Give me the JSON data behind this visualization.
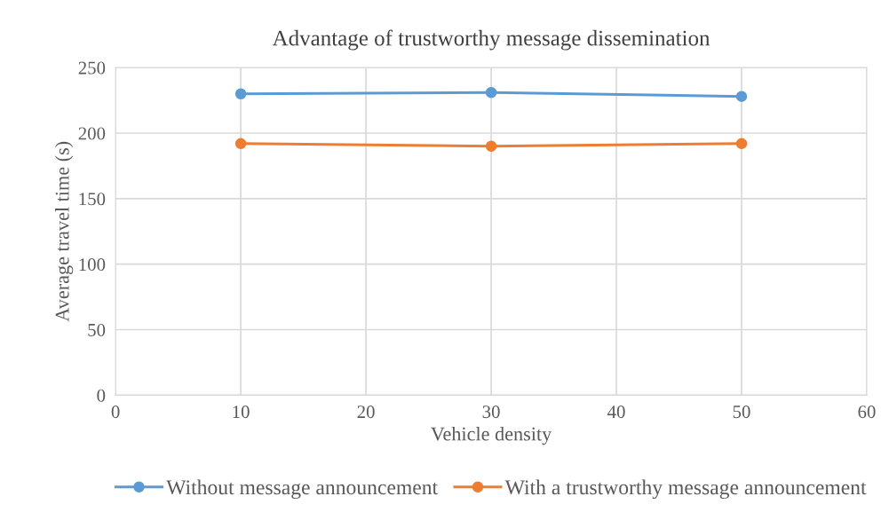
{
  "chart_data": {
    "type": "line",
    "title": "Advantage of trustworthy message dissemination",
    "xlabel": "Vehicle density",
    "ylabel": "Average travel time (s)",
    "x": [
      10,
      30,
      50
    ],
    "series": [
      {
        "name": "Without message announcement",
        "color": "#5b9bd5",
        "values": [
          230,
          231,
          228
        ]
      },
      {
        "name": "With a trustworthy message announcement",
        "color": "#ed7d31",
        "values": [
          192,
          190,
          192
        ]
      }
    ],
    "xlim": [
      0,
      60
    ],
    "xticks": [
      0,
      10,
      20,
      30,
      40,
      50,
      60
    ],
    "ylim": [
      0,
      250
    ],
    "yticks": [
      0,
      50,
      100,
      150,
      200,
      250
    ],
    "grid": true,
    "legend": "bottom",
    "marker": "circle",
    "line_style": "solid"
  }
}
